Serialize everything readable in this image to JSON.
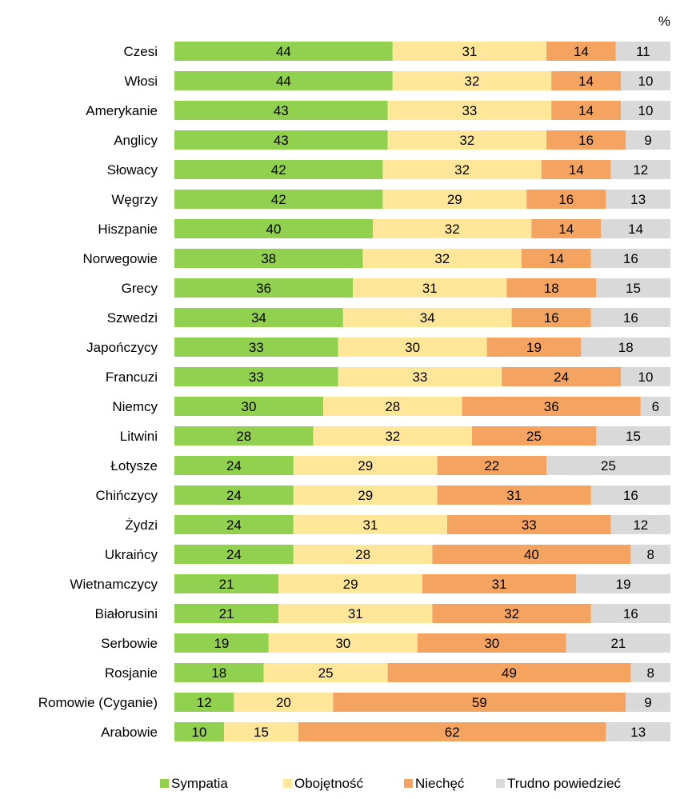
{
  "chart_data": {
    "type": "bar",
    "orientation": "horizontal",
    "stacked": true,
    "unit": "%",
    "categories": [
      "Czesi",
      "Włosi",
      "Amerykanie",
      "Anglicy",
      "Słowacy",
      "Węgrzy",
      "Hiszpanie",
      "Norwegowie",
      "Grecy",
      "Szwedzi",
      "Japończycy",
      "Francuzi",
      "Niemcy",
      "Litwini",
      "Łotysze",
      "Chińczycy",
      "Żydzi",
      "Ukraińcy",
      "Wietnamczycy",
      "Białorusini",
      "Serbowie",
      "Rosjanie",
      "Romowie (Cyganie)",
      "Arabowie"
    ],
    "series": [
      {
        "name": "Sympatia",
        "color": "#92D050",
        "values": [
          44,
          44,
          43,
          43,
          42,
          42,
          40,
          38,
          36,
          34,
          33,
          33,
          30,
          28,
          24,
          24,
          24,
          24,
          21,
          21,
          19,
          18,
          12,
          10
        ]
      },
      {
        "name": "Obojętność",
        "color": "#FFE699",
        "values": [
          31,
          32,
          33,
          32,
          32,
          29,
          32,
          32,
          31,
          34,
          30,
          33,
          28,
          32,
          29,
          29,
          31,
          28,
          29,
          31,
          30,
          25,
          20,
          15
        ]
      },
      {
        "name": "Niechęć",
        "color": "#F4A460",
        "values": [
          14,
          14,
          14,
          16,
          14,
          16,
          14,
          14,
          18,
          16,
          19,
          24,
          36,
          25,
          22,
          31,
          33,
          40,
          31,
          32,
          30,
          49,
          59,
          62
        ]
      },
      {
        "name": "Trudno powiedzieć",
        "color": "#D9D9D9",
        "values": [
          11,
          10,
          10,
          9,
          12,
          13,
          14,
          16,
          15,
          16,
          18,
          10,
          6,
          15,
          25,
          16,
          12,
          8,
          19,
          16,
          21,
          8,
          9,
          13
        ]
      }
    ],
    "xlim": [
      0,
      100
    ],
    "grid": false,
    "legend_position": "bottom"
  }
}
